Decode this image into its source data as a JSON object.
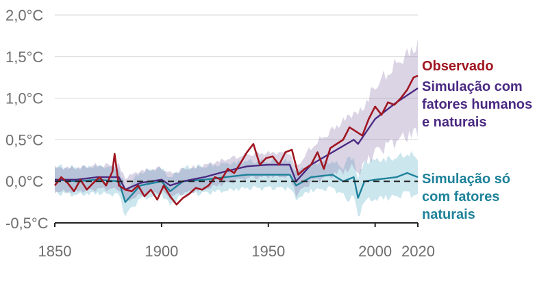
{
  "chart_data": {
    "type": "line",
    "x_ticks": [
      "1850",
      "1900",
      "1950",
      "2000",
      "2020"
    ],
    "y_ticks": [
      "2,0°C",
      "1,5°C",
      "1,0°C",
      "0,5°C",
      "0,0°C",
      "-0,5°C"
    ],
    "y_tick_values": [
      2.0,
      1.5,
      1.0,
      0.5,
      0.0,
      -0.5
    ],
    "x_tick_values": [
      1850,
      1900,
      1950,
      2000,
      2020
    ],
    "xlim": [
      1850,
      2020
    ],
    "ylim": [
      -0.5,
      2.0
    ],
    "grid": true,
    "baseline": 0,
    "series": [
      {
        "name": "Observado",
        "color": "#a01520",
        "x": [
          1850,
          1853,
          1856,
          1859,
          1862,
          1865,
          1868,
          1871,
          1874,
          1877,
          1878,
          1880,
          1883,
          1886,
          1889,
          1892,
          1895,
          1898,
          1901,
          1904,
          1907,
          1910,
          1913,
          1916,
          1919,
          1922,
          1925,
          1928,
          1931,
          1934,
          1937,
          1940,
          1943,
          1946,
          1949,
          1952,
          1955,
          1958,
          1961,
          1964,
          1967,
          1970,
          1973,
          1976,
          1979,
          1982,
          1985,
          1988,
          1991,
          1994,
          1997,
          2000,
          2003,
          2006,
          2009,
          2012,
          2015,
          2018,
          2020
        ],
        "values": [
          -0.05,
          0.05,
          -0.02,
          -0.12,
          0.02,
          -0.1,
          -0.02,
          0.05,
          -0.05,
          0.12,
          0.33,
          -0.05,
          -0.1,
          -0.12,
          -0.05,
          -0.18,
          -0.1,
          -0.22,
          -0.05,
          -0.18,
          -0.28,
          -0.2,
          -0.15,
          -0.08,
          -0.1,
          -0.05,
          0.05,
          0.02,
          0.15,
          0.1,
          0.22,
          0.35,
          0.45,
          0.2,
          0.28,
          0.3,
          0.2,
          0.35,
          0.38,
          0.08,
          0.15,
          0.2,
          0.35,
          0.15,
          0.4,
          0.45,
          0.5,
          0.65,
          0.6,
          0.55,
          0.75,
          0.9,
          0.8,
          0.95,
          0.92,
          1.0,
          1.1,
          1.25,
          1.27
        ]
      },
      {
        "name": "Simulação com fatores humanos e naturais",
        "color": "#4b2a82",
        "x": [
          1850,
          1860,
          1870,
          1880,
          1883,
          1890,
          1900,
          1904,
          1910,
          1920,
          1930,
          1940,
          1950,
          1960,
          1963,
          1970,
          1980,
          1990,
          1992,
          2000,
          2010,
          2020
        ],
        "values": [
          0.02,
          0.02,
          0.05,
          0.05,
          -0.1,
          -0.02,
          0.02,
          -0.05,
          0.0,
          0.05,
          0.12,
          0.18,
          0.2,
          0.2,
          0.0,
          0.2,
          0.35,
          0.5,
          0.45,
          0.75,
          0.95,
          1.12
        ]
      },
      {
        "name": "Simulação só com fatores naturais",
        "color": "#1e829a",
        "x": [
          1850,
          1860,
          1870,
          1880,
          1883,
          1890,
          1900,
          1904,
          1910,
          1920,
          1930,
          1940,
          1950,
          1960,
          1963,
          1970,
          1980,
          1985,
          1990,
          1992,
          1995,
          2000,
          2010,
          2015,
          2020
        ],
        "values": [
          0.02,
          0.0,
          0.02,
          0.0,
          -0.25,
          -0.05,
          0.0,
          -0.12,
          0.0,
          0.02,
          0.05,
          0.08,
          0.08,
          0.08,
          -0.05,
          0.05,
          0.08,
          0.0,
          0.05,
          -0.2,
          0.0,
          0.02,
          0.05,
          0.1,
          0.05
        ]
      }
    ]
  },
  "labels": {
    "observed": "Observado",
    "human_natural": [
      "Simulação com",
      "fatores humanos",
      "e naturais"
    ],
    "natural_only": [
      "Simulação só",
      "com fatores",
      "naturais"
    ]
  }
}
